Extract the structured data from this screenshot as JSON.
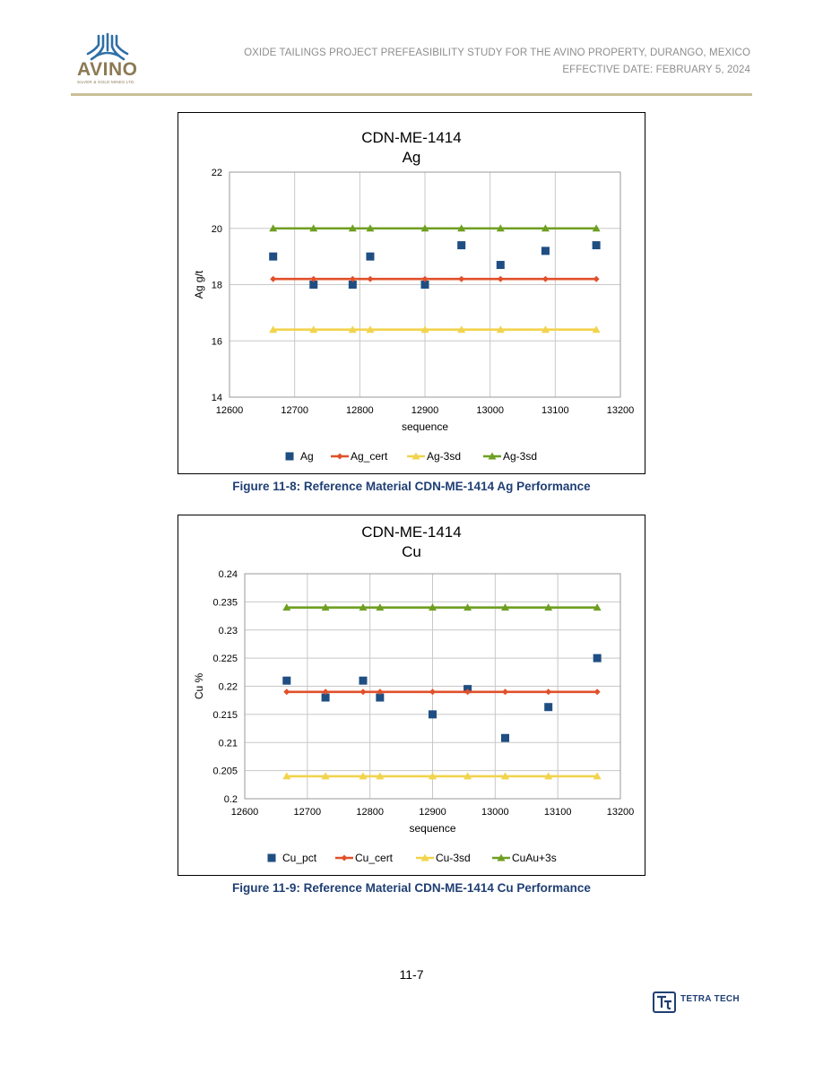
{
  "header": {
    "logo_word": "AVINO",
    "logo_subtitle": "SILVER & GOLD MINES LTD.",
    "line1": "OXIDE TAILINGS PROJECT PREFEASIBILITY STUDY FOR THE AVINO PROPERTY, DURANGO, MEXICO",
    "line2": "EFFECTIVE DATE: FEBRUARY 5, 2024",
    "rule_color": "#c9bf95"
  },
  "figures": [
    {
      "caption": "Figure 11-8: Reference Material CDN-ME-1414 Ag Performance"
    },
    {
      "caption": "Figure 11-9: Reference Material CDN-ME-1414 Cu Performance"
    }
  ],
  "footer": {
    "page_number": "11-7",
    "company": "TETRA TECH",
    "company_icon": "tetra-tech-logo-icon"
  },
  "colors": {
    "sample": "#1f4e82",
    "cert": "#e0502a",
    "minus3sd": "#f2d34c",
    "plus3sd": "#6f9f22",
    "caption": "#1f3f74"
  },
  "chart_data": [
    {
      "type": "scatter",
      "title": "CDN-ME-1414",
      "subtitle": "Ag",
      "xlabel": "sequence",
      "ylabel": "Ag g/t",
      "xlim": [
        12600,
        13200
      ],
      "ylim": [
        14,
        22
      ],
      "xticks": [
        "12600",
        "12700",
        "12800",
        "12900",
        "13000",
        "13100",
        "13200"
      ],
      "yticks": [
        "14",
        "16",
        "18",
        "20",
        "22"
      ],
      "grid": true,
      "legend_position": "bottom",
      "x": [
        12667,
        12729,
        12789,
        12816,
        12900,
        12956,
        13016,
        13085,
        13163
      ],
      "series": [
        {
          "name": "Ag",
          "marker": "square",
          "values": [
            19.0,
            18.0,
            18.0,
            19.0,
            18.0,
            19.4,
            18.7,
            19.2,
            19.4
          ]
        },
        {
          "name": "Ag_cert",
          "marker": "diamond",
          "line": true,
          "values": [
            18.2,
            18.2,
            18.2,
            18.2,
            18.2,
            18.2,
            18.2,
            18.2,
            18.2
          ]
        },
        {
          "name": "Ag-3sd",
          "marker": "triangle",
          "line": true,
          "values": [
            16.4,
            16.4,
            16.4,
            16.4,
            16.4,
            16.4,
            16.4,
            16.4,
            16.4
          ]
        },
        {
          "name": "Ag-3sd",
          "marker": "triangle",
          "line": true,
          "values": [
            20.0,
            20.0,
            20.0,
            20.0,
            20.0,
            20.0,
            20.0,
            20.0,
            20.0
          ]
        }
      ]
    },
    {
      "type": "scatter",
      "title": "CDN-ME-1414",
      "subtitle": "Cu",
      "xlabel": "sequence",
      "ylabel": "Cu %",
      "xlim": [
        12600,
        13200
      ],
      "ylim": [
        0.2,
        0.24
      ],
      "xticks": [
        "12600",
        "12700",
        "12800",
        "12900",
        "13000",
        "13100",
        "13200"
      ],
      "yticks": [
        "0.2",
        "0.205",
        "0.21",
        "0.215",
        "0.22",
        "0.225",
        "0.23",
        "0.235",
        "0.24"
      ],
      "grid": true,
      "legend_position": "bottom",
      "x": [
        12667,
        12729,
        12789,
        12816,
        12900,
        12956,
        13016,
        13085,
        13163
      ],
      "series": [
        {
          "name": "Cu_pct",
          "marker": "square",
          "values": [
            0.221,
            0.218,
            0.221,
            0.218,
            0.215,
            0.2195,
            0.2108,
            0.2163,
            0.225
          ]
        },
        {
          "name": "Cu_cert",
          "marker": "diamond",
          "line": true,
          "values": [
            0.219,
            0.219,
            0.219,
            0.219,
            0.219,
            0.219,
            0.219,
            0.219,
            0.219
          ]
        },
        {
          "name": "Cu-3sd",
          "marker": "triangle",
          "line": true,
          "values": [
            0.204,
            0.204,
            0.204,
            0.204,
            0.204,
            0.204,
            0.204,
            0.204,
            0.204
          ]
        },
        {
          "name": "CuAu+3s",
          "marker": "triangle",
          "line": true,
          "values": [
            0.234,
            0.234,
            0.234,
            0.234,
            0.234,
            0.234,
            0.234,
            0.234,
            0.234
          ]
        }
      ]
    }
  ]
}
